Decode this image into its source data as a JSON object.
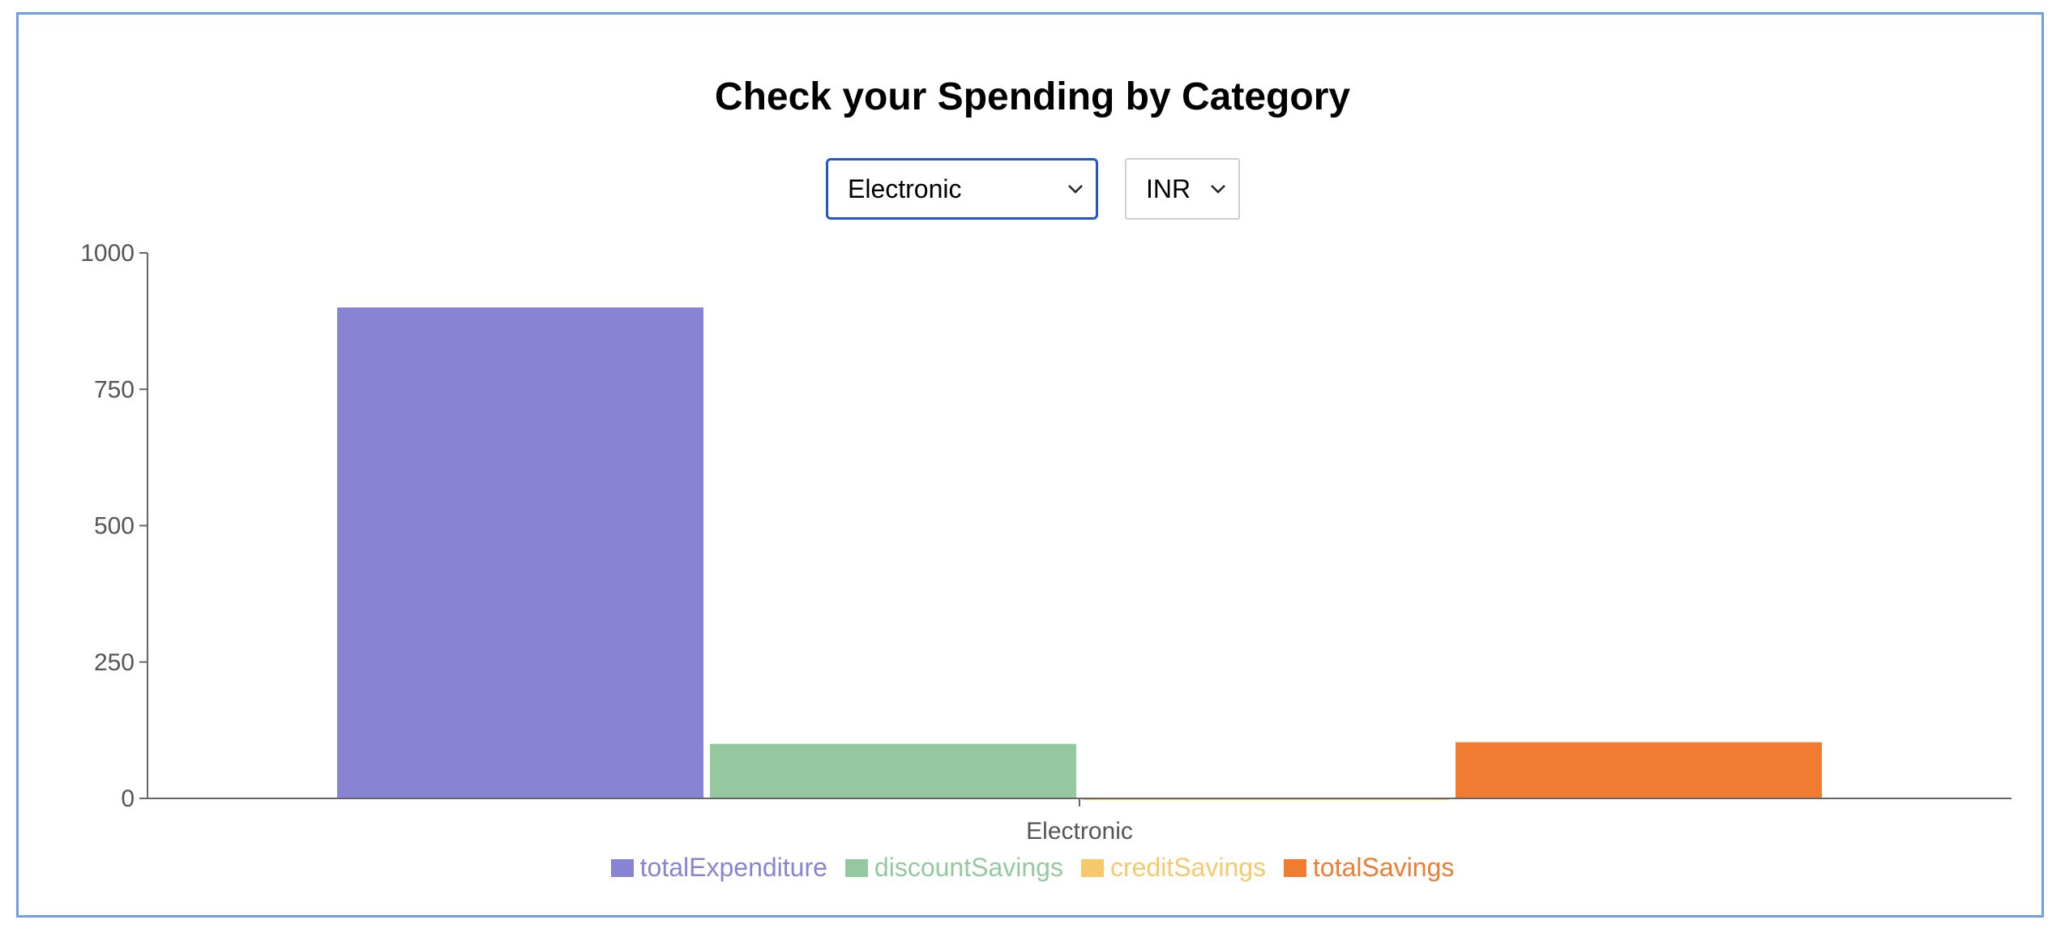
{
  "page": {
    "title": "Check your Spending by Category"
  },
  "controls": {
    "category": {
      "selected": "Electronic"
    },
    "currency": {
      "selected": "INR"
    }
  },
  "colors": {
    "frame_border": "#6e9ee6",
    "totalExpenditure": "#8884d3",
    "discountSavings": "#94c9a0",
    "creditSavings": "#f6c96a",
    "totalSavings": "#ef7c31"
  },
  "chart_data": {
    "type": "bar",
    "categories": [
      "Electronic"
    ],
    "series": [
      {
        "name": "totalExpenditure",
        "values": [
          900
        ],
        "color": "#8884d3"
      },
      {
        "name": "discountSavings",
        "values": [
          100
        ],
        "color": "#94c9a0"
      },
      {
        "name": "creditSavings",
        "values": [
          0
        ],
        "color": "#f6c96a"
      },
      {
        "name": "totalSavings",
        "values": [
          103
        ],
        "color": "#ef7c31"
      }
    ],
    "ylim": [
      0,
      1000
    ],
    "yticks": [
      0,
      250,
      500,
      750,
      1000
    ],
    "legend": "bottom-center",
    "grid": false
  }
}
